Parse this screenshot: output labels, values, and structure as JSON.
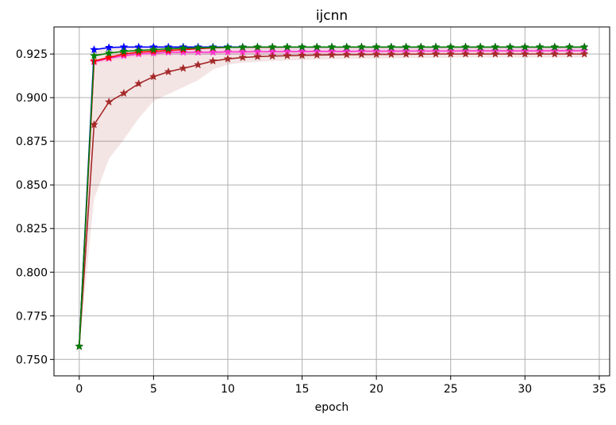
{
  "chart_data": {
    "type": "line",
    "title": "ijcnn",
    "xlabel": "epoch",
    "ylabel": "",
    "xlim": [
      -1.7,
      35.7
    ],
    "ylim": [
      0.7406,
      0.9405
    ],
    "xticks": [
      0,
      5,
      10,
      15,
      20,
      25,
      30,
      35
    ],
    "xtick_labels": [
      "0",
      "5",
      "10",
      "15",
      "20",
      "25",
      "30",
      "35"
    ],
    "yticks": [
      0.75,
      0.775,
      0.8,
      0.825,
      0.85,
      0.875,
      0.9,
      0.925
    ],
    "ytick_labels": [
      "0.750",
      "0.775",
      "0.800",
      "0.825",
      "0.850",
      "0.875",
      "0.900",
      "0.925"
    ],
    "grid": true,
    "marker": "star",
    "x": [
      0,
      1,
      2,
      3,
      4,
      5,
      6,
      7,
      8,
      9,
      10,
      11,
      12,
      13,
      14,
      15,
      16,
      17,
      18,
      19,
      20,
      21,
      22,
      23,
      24,
      25,
      26,
      27,
      28,
      29,
      30,
      31,
      32,
      33,
      34
    ],
    "series": [
      {
        "color": "#ff33cc",
        "values": [
          0.7575,
          0.9205,
          0.9225,
          0.924,
          0.925,
          0.9255,
          0.926,
          0.926,
          0.926,
          0.926,
          0.9262,
          0.9262,
          0.9263,
          0.9263,
          0.9264,
          0.9264,
          0.9265,
          0.9265,
          0.9265,
          0.9266,
          0.9266,
          0.9266,
          0.9267,
          0.9267,
          0.9267,
          0.9267,
          0.9268,
          0.9268,
          0.9268,
          0.9268,
          0.9268,
          0.9268,
          0.9269,
          0.9269,
          0.9269
        ],
        "band": [
          [
            0.7575,
            0.7575
          ],
          [
            0.9195,
            0.9215
          ],
          [
            0.921,
            0.924
          ],
          [
            0.9225,
            0.9255
          ],
          [
            0.9235,
            0.9265
          ],
          [
            0.924,
            0.927
          ],
          [
            0.9245,
            0.9275
          ],
          [
            0.9245,
            0.9275
          ],
          [
            0.9245,
            0.9275
          ],
          [
            0.9245,
            0.9275
          ],
          [
            0.9247,
            0.9277
          ],
          [
            0.9247,
            0.9277
          ],
          [
            0.9248,
            0.9278
          ],
          [
            0.9248,
            0.9278
          ],
          [
            0.9249,
            0.9279
          ],
          [
            0.9249,
            0.9279
          ],
          [
            0.925,
            0.928
          ],
          [
            0.925,
            0.928
          ],
          [
            0.925,
            0.928
          ],
          [
            0.9251,
            0.9281
          ],
          [
            0.9251,
            0.9281
          ],
          [
            0.9251,
            0.9281
          ],
          [
            0.9252,
            0.9282
          ],
          [
            0.9252,
            0.9282
          ],
          [
            0.9252,
            0.9282
          ],
          [
            0.9252,
            0.9282
          ],
          [
            0.9253,
            0.9283
          ],
          [
            0.9253,
            0.9283
          ],
          [
            0.9253,
            0.9283
          ],
          [
            0.9253,
            0.9283
          ],
          [
            0.9253,
            0.9283
          ],
          [
            0.9253,
            0.9283
          ],
          [
            0.9254,
            0.9284
          ],
          [
            0.9254,
            0.9284
          ],
          [
            0.9254,
            0.9284
          ]
        ]
      },
      {
        "color": "#ff0000",
        "values": [
          0.7575,
          0.921,
          0.923,
          0.925,
          0.926,
          0.9265,
          0.927,
          0.9275,
          0.928,
          0.9285,
          0.9288,
          0.9288,
          0.9289,
          0.9289,
          0.929,
          0.929,
          0.929,
          0.929,
          0.929,
          0.929,
          0.929,
          0.929,
          0.929,
          0.929,
          0.929,
          0.929,
          0.929,
          0.929,
          0.929,
          0.929,
          0.929,
          0.929,
          0.929,
          0.929,
          0.929
        ]
      },
      {
        "color": "#0000ff",
        "values": [
          0.7575,
          0.9275,
          0.9287,
          0.929,
          0.929,
          0.929,
          0.929,
          0.929,
          0.929,
          0.929,
          0.929,
          0.929,
          0.929,
          0.929,
          0.929,
          0.929,
          0.929,
          0.929,
          0.929,
          0.929,
          0.929,
          0.929,
          0.929,
          0.929,
          0.929,
          0.929,
          0.929,
          0.929,
          0.929,
          0.929,
          0.929,
          0.929,
          0.929,
          0.929,
          0.929
        ]
      },
      {
        "color": "#a52a2a",
        "values": [
          0.7575,
          0.8845,
          0.8975,
          0.9025,
          0.908,
          0.912,
          0.9148,
          0.9168,
          0.9188,
          0.921,
          0.9222,
          0.923,
          0.9235,
          0.9238,
          0.924,
          0.9242,
          0.9244,
          0.9245,
          0.9246,
          0.9247,
          0.9248,
          0.9248,
          0.9249,
          0.9249,
          0.925,
          0.925,
          0.925,
          0.925,
          0.925,
          0.925,
          0.925,
          0.925,
          0.925,
          0.925,
          0.925
        ],
        "band": [
          [
            0.7575,
            0.7575
          ],
          [
            0.842,
            0.927
          ],
          [
            0.865,
            0.929
          ],
          [
            0.876,
            0.929
          ],
          [
            0.888,
            0.929
          ],
          [
            0.898,
            0.929
          ],
          [
            0.902,
            0.929
          ],
          [
            0.906,
            0.929
          ],
          [
            0.91,
            0.929
          ],
          [
            0.916,
            0.929
          ],
          [
            0.919,
            0.929
          ],
          [
            0.92,
            0.929
          ],
          [
            0.9205,
            0.929
          ],
          [
            0.921,
            0.929
          ],
          [
            0.9213,
            0.929
          ],
          [
            0.9216,
            0.929
          ],
          [
            0.9218,
            0.929
          ],
          [
            0.922,
            0.929
          ],
          [
            0.9222,
            0.929
          ],
          [
            0.9223,
            0.929
          ],
          [
            0.9224,
            0.929
          ],
          [
            0.9225,
            0.929
          ],
          [
            0.9226,
            0.929
          ],
          [
            0.9227,
            0.929
          ],
          [
            0.9228,
            0.929
          ],
          [
            0.9229,
            0.929
          ],
          [
            0.923,
            0.929
          ],
          [
            0.923,
            0.929
          ],
          [
            0.923,
            0.929
          ],
          [
            0.923,
            0.929
          ],
          [
            0.923,
            0.929
          ],
          [
            0.923,
            0.929
          ],
          [
            0.923,
            0.929
          ],
          [
            0.923,
            0.929
          ],
          [
            0.923,
            0.929
          ]
        ]
      },
      {
        "color": "#008000",
        "values": [
          0.7575,
          0.924,
          0.9255,
          0.9265,
          0.927,
          0.9275,
          0.928,
          0.9283,
          0.9285,
          0.9287,
          0.9288,
          0.9289,
          0.929,
          0.929,
          0.929,
          0.929,
          0.929,
          0.929,
          0.929,
          0.929,
          0.929,
          0.929,
          0.929,
          0.929,
          0.929,
          0.929,
          0.929,
          0.929,
          0.929,
          0.929,
          0.929,
          0.929,
          0.929,
          0.929,
          0.929
        ]
      }
    ]
  }
}
